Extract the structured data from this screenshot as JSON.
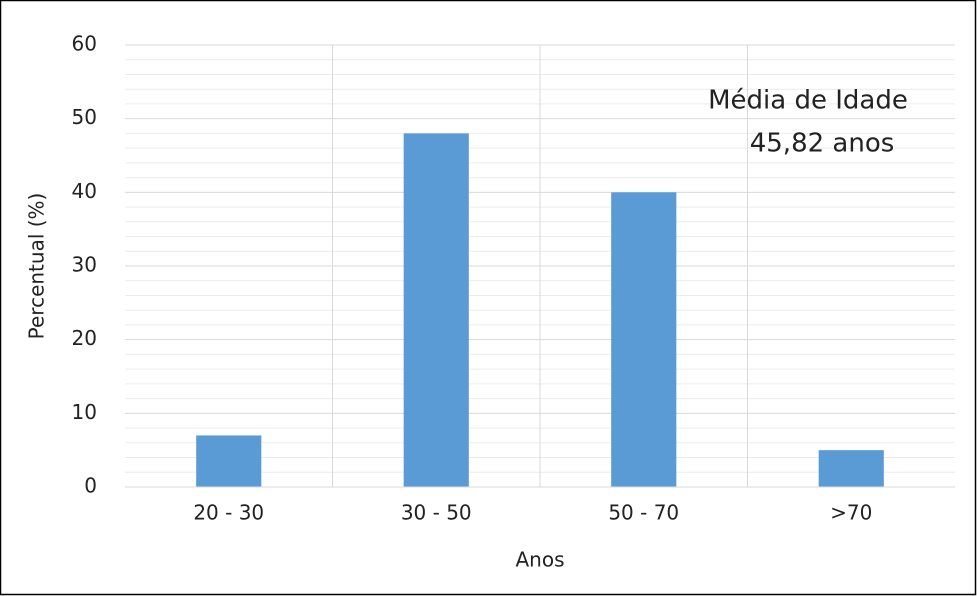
{
  "chart_data": {
    "type": "bar",
    "x_label": "Anos",
    "y_label": "Percentual (%)",
    "annotation": [
      "Média de Idade",
      "45,82 anos"
    ],
    "categories": [
      "20 - 30",
      "30 - 50",
      "50 - 70",
      ">70"
    ],
    "values": [
      7,
      48,
      40,
      5
    ],
    "color": "#5b9bd5",
    "ylim": [
      0,
      60
    ],
    "yticks": [
      0,
      10,
      20,
      30,
      40,
      50,
      60
    ],
    "yminorticks": [
      2,
      4,
      6,
      8,
      12,
      14,
      16,
      18,
      22,
      24,
      26,
      28,
      32,
      34,
      36,
      38,
      42,
      44,
      46,
      48,
      52,
      54,
      56,
      58
    ],
    "grid": true
  }
}
